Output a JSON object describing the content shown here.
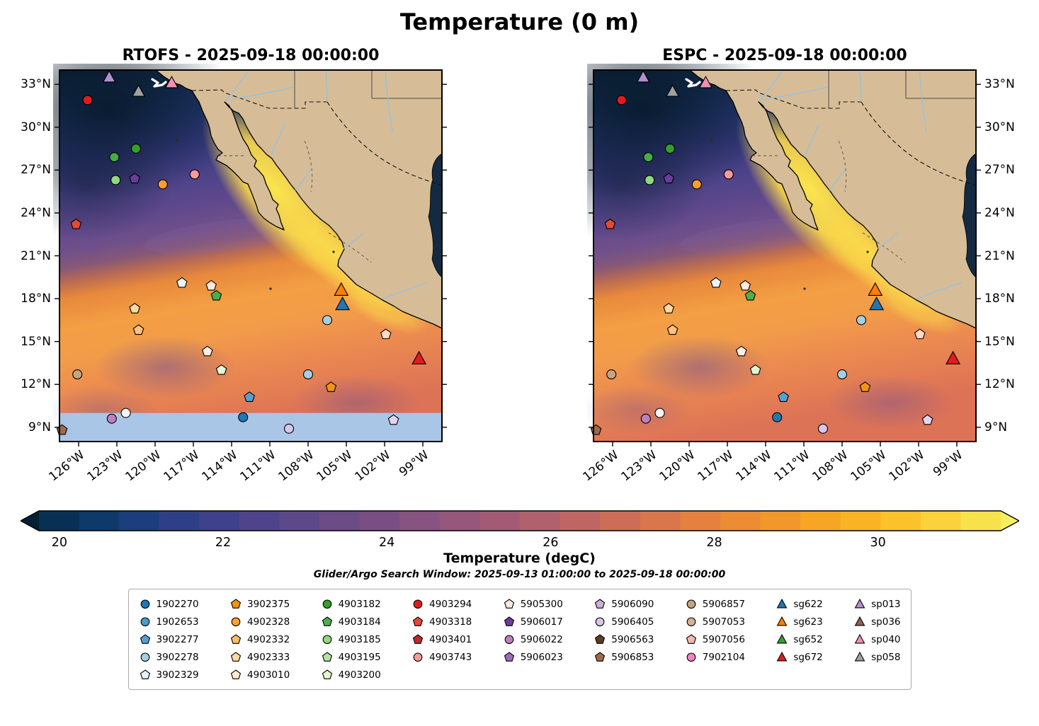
{
  "title": "Temperature (0 m)",
  "panels": [
    {
      "id": "rtofs",
      "title": "RTOFS - 2025-09-18 00:00:00",
      "missing_band": true,
      "lat_label_side": "left"
    },
    {
      "id": "espc",
      "title": "ESPC - 2025-09-18 00:00:00",
      "missing_band": false,
      "lat_label_side": "right"
    }
  ],
  "axes": {
    "lat_ticks": [
      {
        "label": "33°N",
        "value": 33
      },
      {
        "label": "30°N",
        "value": 30
      },
      {
        "label": "27°N",
        "value": 27
      },
      {
        "label": "24°N",
        "value": 24
      },
      {
        "label": "21°N",
        "value": 21
      },
      {
        "label": "18°N",
        "value": 18
      },
      {
        "label": "15°N",
        "value": 15
      },
      {
        "label": "12°N",
        "value": 12
      },
      {
        "label": "9°N",
        "value": 9
      }
    ],
    "lon_ticks": [
      {
        "label": "126°W",
        "value_w": 126
      },
      {
        "label": "123°W",
        "value_w": 123
      },
      {
        "label": "120°W",
        "value_w": 120
      },
      {
        "label": "117°W",
        "value_w": 117
      },
      {
        "label": "114°W",
        "value_w": 114
      },
      {
        "label": "111°W",
        "value_w": 111
      },
      {
        "label": "108°W",
        "value_w": 108
      },
      {
        "label": "105°W",
        "value_w": 105
      },
      {
        "label": "102°W",
        "value_w": 102
      },
      {
        "label": "99°W",
        "value_w": 99
      }
    ]
  },
  "colorbar": {
    "label": "Temperature (degC)",
    "ticks": [
      20,
      22,
      24,
      26,
      28,
      30
    ],
    "vmin": 19.75,
    "vmax": 31.5,
    "left_arrow_color": "#042032",
    "right_arrow_color": "#f5f060",
    "segments": [
      "#083054",
      "#0d3a68",
      "#1d3e7c",
      "#2f3f87",
      "#40418b",
      "#4f448b",
      "#5d4889",
      "#6b4c86",
      "#794f83",
      "#875380",
      "#95577b",
      "#a35b75",
      "#b1606d",
      "#bf6663",
      "#cd6d58",
      "#d9764b",
      "#e4813e",
      "#ec8c33",
      "#f2982a",
      "#f7a525",
      "#fab325",
      "#fcc22c",
      "#fbd23b",
      "#f8e24c"
    ]
  },
  "subtitle": "Glider/Argo Search Window: 2025-09-13 01:00:00 to 2025-09-18 00:00:00",
  "map_style": {
    "land": "#d6bd97",
    "missing_data": "#a9c6e6",
    "river": "#93c1e2",
    "ocean_cold": "#0c2135",
    "ocean_hot": "#fce54d"
  },
  "legend": {
    "columns": [
      [
        {
          "label": "1902270",
          "shape": "circle",
          "color": "#1f78b4"
        },
        {
          "label": "1902653",
          "shape": "circle",
          "color": "#4a9bc9"
        },
        {
          "label": "3902277",
          "shape": "pentagon",
          "color": "#56a0d3"
        },
        {
          "label": "3902278",
          "shape": "circle",
          "color": "#a6cee3"
        },
        {
          "label": "3902329",
          "shape": "pentagon",
          "color": "#e8f0f8"
        }
      ],
      [
        {
          "label": "3902375",
          "shape": "pentagon",
          "color": "#f5920f"
        },
        {
          "label": "4902328",
          "shape": "circle",
          "color": "#ffa02f"
        },
        {
          "label": "4902332",
          "shape": "pentagon",
          "color": "#fdbc6b"
        },
        {
          "label": "4902333",
          "shape": "pentagon",
          "color": "#fdd9a0"
        },
        {
          "label": "4903010",
          "shape": "pentagon",
          "color": "#fdecce"
        }
      ],
      [
        {
          "label": "4903182",
          "shape": "circle",
          "color": "#33a02c"
        },
        {
          "label": "4903184",
          "shape": "pentagon",
          "color": "#4daf4a"
        },
        {
          "label": "4903185",
          "shape": "circle",
          "color": "#90d883"
        },
        {
          "label": "4903195",
          "shape": "pentagon",
          "color": "#b6e2a1"
        },
        {
          "label": "4903200",
          "shape": "pentagon",
          "color": "#e4f6d2"
        }
      ],
      [
        {
          "label": "4903294",
          "shape": "circle",
          "color": "#e31a1c"
        },
        {
          "label": "4903318",
          "shape": "pentagon",
          "color": "#e34a33"
        },
        {
          "label": "4903401",
          "shape": "pentagon",
          "color": "#c62828"
        },
        {
          "label": "4903743",
          "shape": "circle",
          "color": "#fb9a99"
        }
      ],
      [
        {
          "label": "5905300",
          "shape": "pentagon",
          "color": "#fde8dc"
        },
        {
          "label": "5906017",
          "shape": "pentagon",
          "color": "#6a3d9a"
        },
        {
          "label": "5906022",
          "shape": "circle",
          "color": "#bc80bd"
        },
        {
          "label": "5906023",
          "shape": "pentagon",
          "color": "#9e6bbd"
        }
      ],
      [
        {
          "label": "5906090",
          "shape": "pentagon",
          "color": "#cab2d6"
        },
        {
          "label": "5906405",
          "shape": "circle",
          "color": "#d9c5e8"
        },
        {
          "label": "5906563",
          "shape": "pentagon",
          "color": "#5e3c24"
        },
        {
          "label": "5906853",
          "shape": "pentagon",
          "color": "#9c6b4f"
        }
      ],
      [
        {
          "label": "5906857",
          "shape": "circle",
          "color": "#c4a484"
        },
        {
          "label": "5907053",
          "shape": "circle",
          "color": "#d8b094"
        },
        {
          "label": "5907056",
          "shape": "pentagon",
          "color": "#f4b8b0"
        },
        {
          "label": "7902104",
          "shape": "circle",
          "color": "#f781bf"
        }
      ],
      [
        {
          "label": "sg622",
          "shape": "triangle",
          "color": "#1f78b4"
        },
        {
          "label": "sg623",
          "shape": "triangle",
          "color": "#ff7f00"
        },
        {
          "label": "sg652",
          "shape": "triangle",
          "color": "#33a02c"
        },
        {
          "label": "sg672",
          "shape": "triangle",
          "color": "#e31a1c"
        }
      ],
      [
        {
          "label": "sp013",
          "shape": "triangle",
          "color": "#b18fd0"
        },
        {
          "label": "sp036",
          "shape": "triangle",
          "color": "#8b6355"
        },
        {
          "label": "sp040",
          "shape": "triangle",
          "color": "#f48fb1"
        },
        {
          "label": "sp058",
          "shape": "triangle",
          "color": "#a0a0a0"
        }
      ]
    ]
  },
  "markers": [
    {
      "shape": "circle",
      "color": "#e31a1c",
      "lon": -125.3,
      "lat": 31.9,
      "size": 6.5
    },
    {
      "shape": "triangle",
      "color": "#b18fd0",
      "lon": -123.6,
      "lat": 33.5,
      "size": 9
    },
    {
      "shape": "triangle",
      "color": "#a0a0a0",
      "lon": -121.3,
      "lat": 32.5,
      "size": 9
    },
    {
      "shape": "triangle",
      "color": "#f48fb1",
      "lon": -118.7,
      "lat": 33.1,
      "size": 9
    },
    {
      "shape": "circle",
      "color": "#33a02c",
      "lon": -121.5,
      "lat": 28.5,
      "size": 6.5
    },
    {
      "shape": "circle",
      "color": "#44ad43",
      "lon": -123.2,
      "lat": 27.9,
      "size": 6.5
    },
    {
      "shape": "circle",
      "color": "#90d883",
      "lon": -123.1,
      "lat": 26.3,
      "size": 6.5
    },
    {
      "shape": "pentagon",
      "color": "#6a3d9a",
      "lon": -121.6,
      "lat": 26.4,
      "size": 7.5
    },
    {
      "shape": "circle",
      "color": "#ff9d2e",
      "lon": -119.4,
      "lat": 26.0,
      "size": 6.5
    },
    {
      "shape": "circle",
      "color": "#fb9a99",
      "lon": -116.9,
      "lat": 26.7,
      "size": 6.5
    },
    {
      "shape": "pentagon",
      "color": "#e34a33",
      "lon": -126.2,
      "lat": 23.2,
      "size": 7.5
    },
    {
      "shape": "pentagon",
      "color": "#eef3fb",
      "lon": -117.9,
      "lat": 19.1,
      "size": 7.5
    },
    {
      "shape": "pentagon",
      "color": "#fde8dc",
      "lon": -115.6,
      "lat": 18.9,
      "size": 7.5
    },
    {
      "shape": "pentagon",
      "color": "#4daf4a",
      "lon": -115.2,
      "lat": 18.2,
      "size": 7.5
    },
    {
      "shape": "triangle",
      "color": "#ff7f00",
      "lon": -105.4,
      "lat": 18.6,
      "size": 10
    },
    {
      "shape": "triangle",
      "color": "#1f78b4",
      "lon": -105.3,
      "lat": 17.6,
      "size": 10
    },
    {
      "shape": "pentagon",
      "color": "#fdd9a0",
      "lon": -121.6,
      "lat": 17.3,
      "size": 7.5
    },
    {
      "shape": "circle",
      "color": "#a6cee3",
      "lon": -106.5,
      "lat": 16.5,
      "size": 6.5
    },
    {
      "shape": "pentagon",
      "color": "#fcc27e",
      "lon": -121.3,
      "lat": 15.8,
      "size": 7.5
    },
    {
      "shape": "pentagon",
      "color": "#fddbc7",
      "lon": -101.9,
      "lat": 15.5,
      "size": 7.5
    },
    {
      "shape": "pentagon",
      "color": "#fdeee4",
      "lon": -115.9,
      "lat": 14.3,
      "size": 7.5
    },
    {
      "shape": "triangle",
      "color": "#e31a1c",
      "lon": -99.3,
      "lat": 13.8,
      "size": 10
    },
    {
      "shape": "circle",
      "color": "#c4a484",
      "lon": -126.1,
      "lat": 12.7,
      "size": 6.5
    },
    {
      "shape": "pentagon",
      "color": "#e4f6d2",
      "lon": -114.8,
      "lat": 13.0,
      "size": 7.5
    },
    {
      "shape": "circle",
      "color": "#a6cee3",
      "lon": -108.0,
      "lat": 12.7,
      "size": 6.5
    },
    {
      "shape": "pentagon",
      "color": "#f5920f",
      "lon": -106.2,
      "lat": 11.8,
      "size": 7.5
    },
    {
      "shape": "pentagon",
      "color": "#56a0d3",
      "lon": -112.6,
      "lat": 11.1,
      "size": 7.5
    },
    {
      "shape": "circle",
      "color": "#f4f4f4",
      "lon": -122.3,
      "lat": 10.0,
      "size": 6.5
    },
    {
      "shape": "circle",
      "color": "#bc80bd",
      "lon": -123.4,
      "lat": 9.6,
      "size": 6.5
    },
    {
      "shape": "circle",
      "color": "#1f78b4",
      "lon": -113.1,
      "lat": 9.7,
      "size": 6.5
    },
    {
      "shape": "circle",
      "color": "#d9c5e8",
      "lon": -109.5,
      "lat": 8.9,
      "size": 6.5
    },
    {
      "shape": "pentagon",
      "color": "#e3d3ef",
      "lon": -101.3,
      "lat": 9.5,
      "size": 7.5
    },
    {
      "shape": "pentagon",
      "color": "#9c6b4f",
      "lon": -127.3,
      "lat": 8.8,
      "size": 7.5
    }
  ],
  "chart_data": {
    "type": "heatmap",
    "title": "Temperature (0 m)",
    "variable": "Sea surface temperature",
    "units": "degC",
    "maps": [
      {
        "model": "RTOFS",
        "valid_time": "2025-09-18 00:00:00",
        "note": "no data south of ~10N (light blue band)"
      },
      {
        "model": "ESPC",
        "valid_time": "2025-09-18 00:00:00"
      }
    ],
    "lon_range_deg": [
      -127.5,
      -97.5
    ],
    "lat_range_deg": [
      8,
      34
    ],
    "lat_ticks_deg_n": [
      33,
      30,
      27,
      24,
      21,
      18,
      15,
      12,
      9
    ],
    "lon_ticks_deg_w": [
      126,
      123,
      120,
      117,
      114,
      111,
      108,
      105,
      102,
      99
    ],
    "temp_scale": {
      "ticks": [
        20,
        22,
        24,
        26,
        28,
        30
      ],
      "vmin": 19.75,
      "vmax": 31.5,
      "extend": "both"
    },
    "search_window": {
      "start": "2025-09-13 01:00:00",
      "end": "2025-09-18 00:00:00"
    },
    "platforms": [
      "1902270",
      "1902653",
      "3902277",
      "3902278",
      "3902329",
      "3902375",
      "4902328",
      "4902332",
      "4902333",
      "4903010",
      "4903182",
      "4903184",
      "4903185",
      "4903195",
      "4903200",
      "4903294",
      "4903318",
      "4903401",
      "4903743",
      "5905300",
      "5906017",
      "5906022",
      "5906023",
      "5906090",
      "5906405",
      "5906563",
      "5906853",
      "5906857",
      "5907053",
      "5907056",
      "7902104",
      "sg622",
      "sg623",
      "sg652",
      "sg672",
      "sp013",
      "sp036",
      "sp040",
      "sp058"
    ]
  }
}
